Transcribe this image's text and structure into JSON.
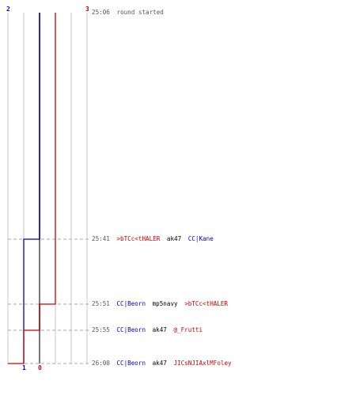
{
  "colors": {
    "team_blue": "#0000cc",
    "team_red": "#cc0000",
    "grid": "#c8c8c8",
    "zero_line": "#777777",
    "time": "#555555",
    "dash": "#aaaaaa"
  },
  "chart_data": {
    "type": "line",
    "x_scores": [
      0,
      1,
      2,
      3
    ],
    "bottom_labels": [
      "1",
      "0"
    ],
    "top_labels": [
      "2",
      "3"
    ],
    "series": [
      {
        "team": "blue",
        "points": [
          {
            "time": "25:06",
            "score": 2
          },
          {
            "time": "25:41",
            "score": 1
          },
          {
            "time": "26:00",
            "score": 1
          }
        ]
      },
      {
        "team": "red",
        "points": [
          {
            "time": "25:06",
            "score": 3
          },
          {
            "time": "25:51",
            "score": 2
          },
          {
            "time": "25:55",
            "score": 1
          },
          {
            "time": "26:00",
            "score": 0
          }
        ]
      }
    ]
  },
  "events": [
    {
      "time": "25:06",
      "message": "round started"
    },
    {
      "time": "25:41",
      "killer": ">bTCc<tHALER",
      "killer_team": "red",
      "weapon": "ak47",
      "victim": "CC|Kane",
      "victim_team": "blue"
    },
    {
      "time": "25:51",
      "killer": "CC|Beorn",
      "killer_team": "blue",
      "weapon": "mp5navy",
      "victim": ">bTCc<tHALER",
      "victim_team": "red"
    },
    {
      "time": "25:55",
      "killer": "CC|Beorn",
      "killer_team": "blue",
      "weapon": "ak47",
      "victim": "@_Frutti",
      "victim_team": "red"
    },
    {
      "time": "26:00",
      "killer": "CC|Beorn",
      "killer_team": "blue",
      "weapon": "ak47",
      "victim": "JICsNJIAxlMFoley",
      "victim_team": "red"
    }
  ]
}
